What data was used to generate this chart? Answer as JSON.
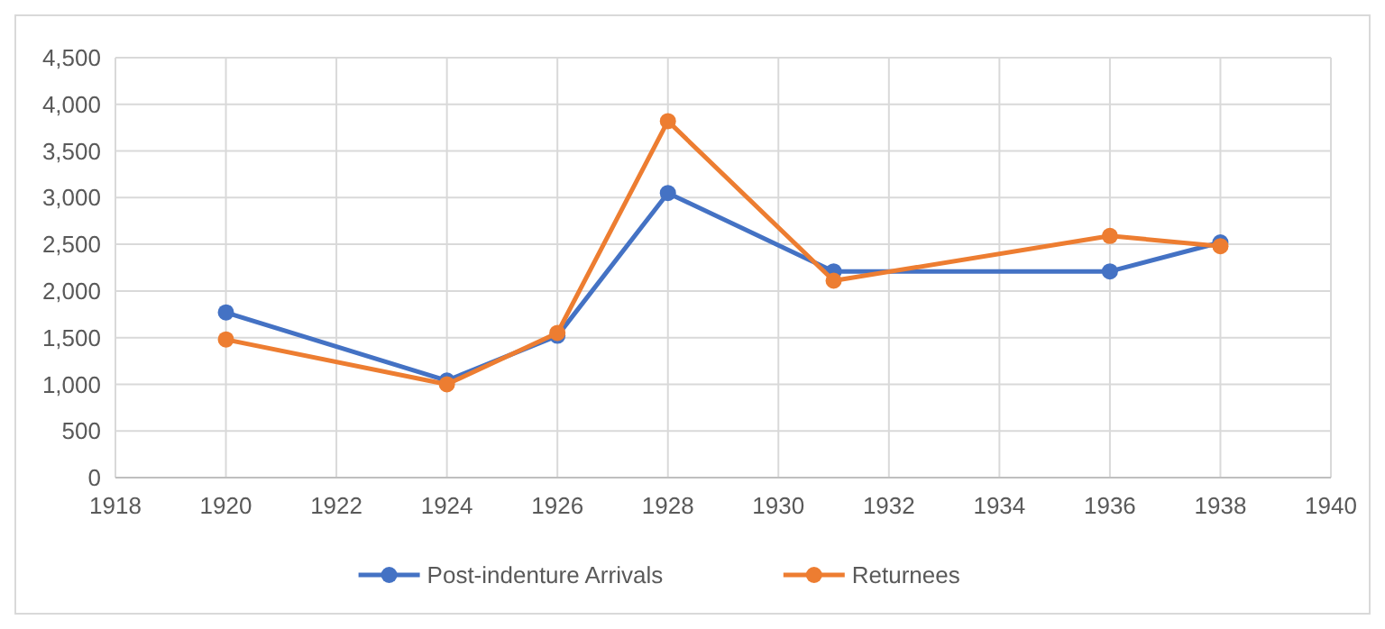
{
  "chart_data": {
    "type": "line",
    "x": [
      1920,
      1924,
      1926,
      1928,
      1931,
      1936,
      1938
    ],
    "series": [
      {
        "name": "Post-indenture Arrivals",
        "color": "#4472c4",
        "values": [
          1770,
          1040,
          1520,
          3050,
          2210,
          2210,
          2520
        ]
      },
      {
        "name": "Returnees",
        "color": "#ed7d31",
        "values": [
          1480,
          1000,
          1550,
          3820,
          2110,
          2590,
          2480
        ]
      }
    ],
    "xlim": [
      1918,
      1940
    ],
    "xticks": [
      1918,
      1920,
      1922,
      1924,
      1926,
      1928,
      1930,
      1932,
      1934,
      1936,
      1938,
      1940
    ],
    "ylim": [
      0,
      4500
    ],
    "yticks": [
      0,
      {
        "value": 500,
        "label": "500"
      },
      {
        "value": 1000,
        "label": "1,000"
      },
      {
        "value": 1500,
        "label": "1,500"
      },
      {
        "value": 2000,
        "label": "2,000"
      },
      {
        "value": 2500,
        "label": "2,500"
      },
      {
        "value": 3000,
        "label": "3,000"
      },
      {
        "value": 3500,
        "label": "3,500"
      },
      {
        "value": 4000,
        "label": "4,000"
      },
      {
        "value": 4500,
        "label": "4,500"
      }
    ],
    "grid": true,
    "legend": "bottom",
    "marker": "circle",
    "line_style": "solid"
  }
}
